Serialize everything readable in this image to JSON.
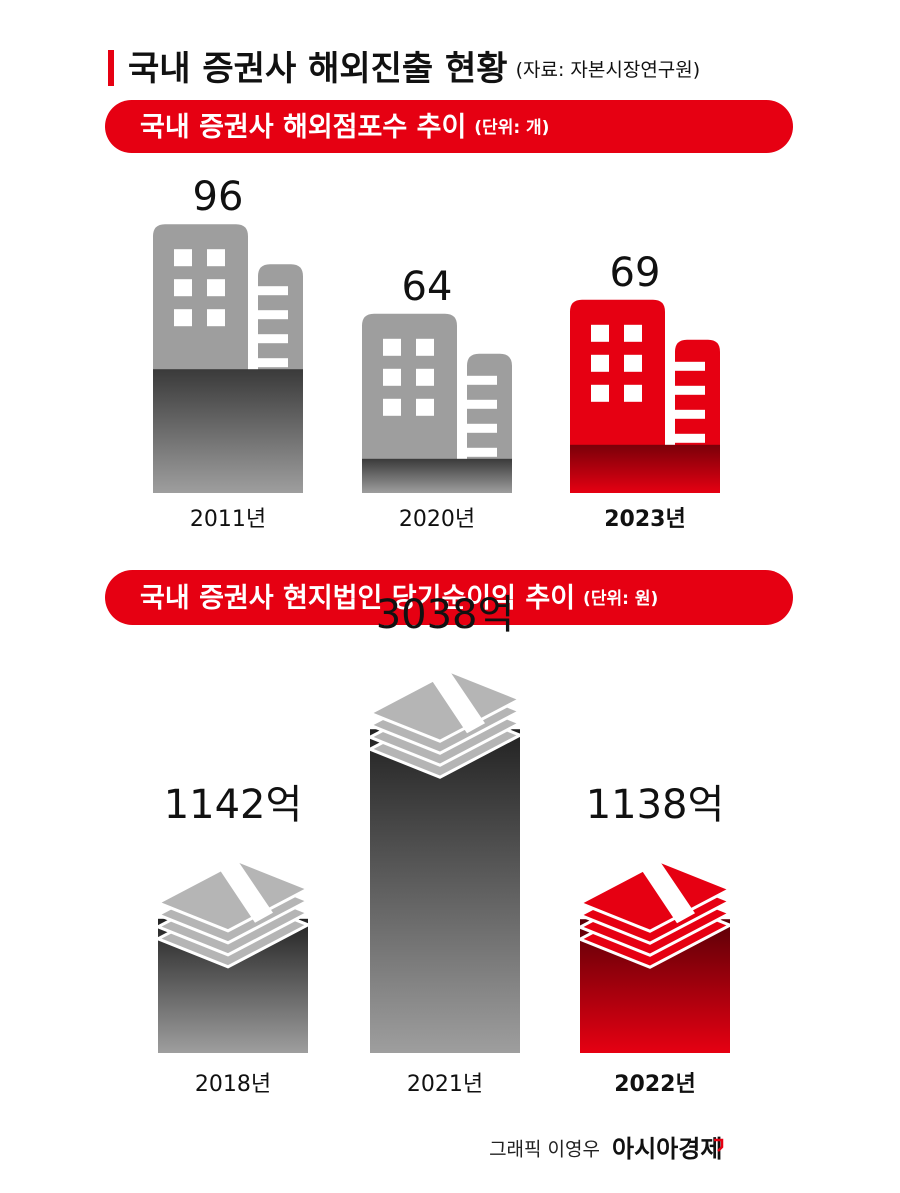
{
  "header": {
    "title": "국내 증권사 해외진출 현황",
    "source": "(자료: 자본시장연구원)"
  },
  "chart_data": [
    {
      "type": "building",
      "title": "국내 증권사 해외점포수 추이",
      "unit": "(단위: 개)",
      "categories": [
        "2011년",
        "2020년",
        "2023년"
      ],
      "values": [
        96,
        64,
        69
      ],
      "colors": [
        "#9e9e9e",
        "#9e9e9e",
        "#e60012"
      ]
    },
    {
      "type": "money",
      "title": "국내 증권사 현지법인 당기순이익 추이",
      "unit": "(단위: 원)",
      "categories": [
        "2018년",
        "2021년",
        "2022년"
      ],
      "values": [
        114200000000,
        303800000000,
        113800000000
      ],
      "value_labels": [
        "1142억",
        "3038억",
        "1138억"
      ],
      "colors": [
        "#9e9e9e",
        "#9e9e9e",
        "#e60012"
      ]
    }
  ],
  "footer": {
    "credit": "그래픽 이영우",
    "brand": "아시아경제"
  }
}
